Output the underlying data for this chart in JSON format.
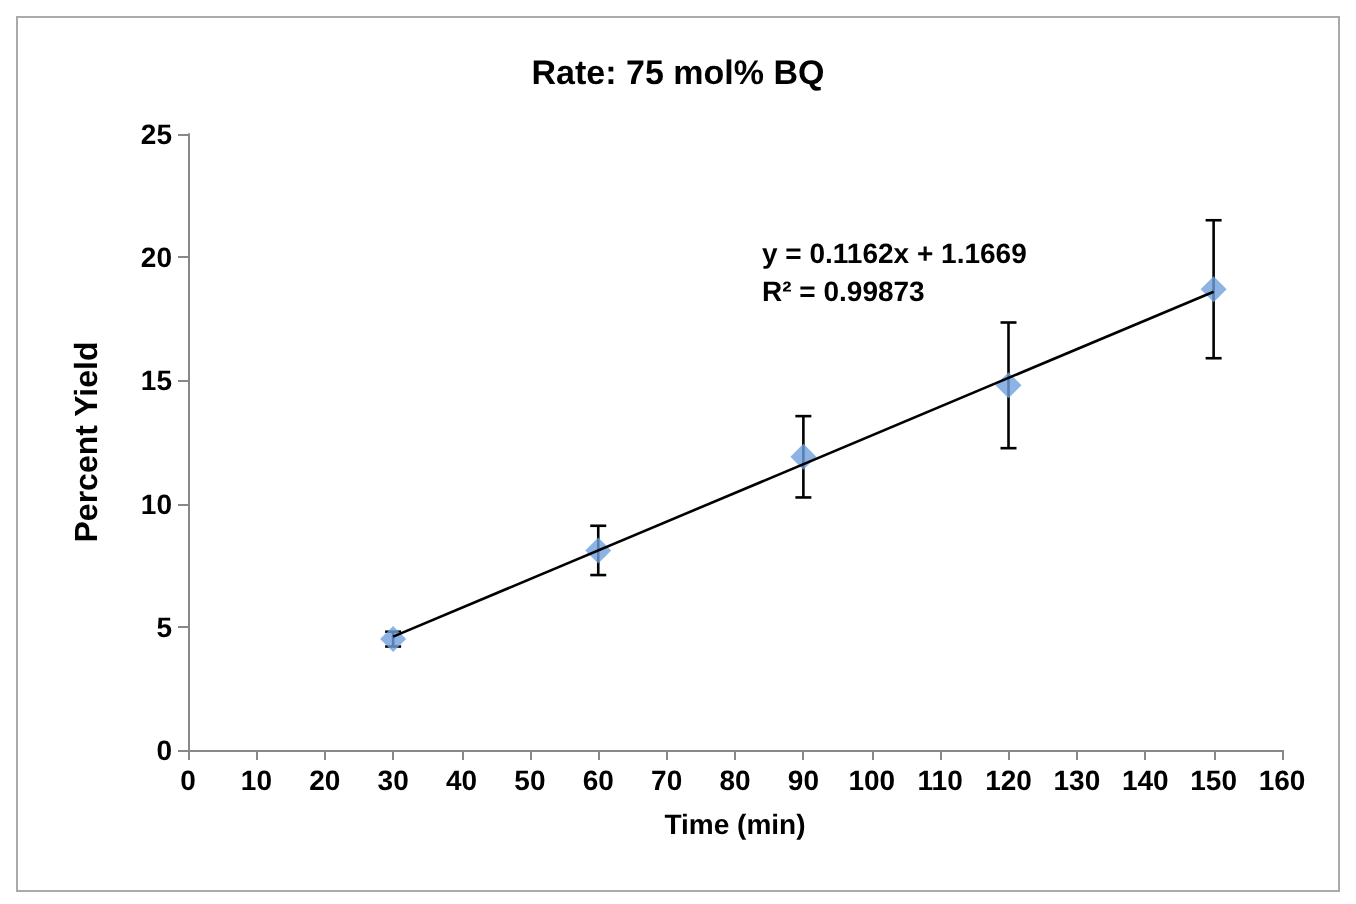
{
  "chart_data": {
    "type": "scatter",
    "title": "Rate: 75 mol% BQ",
    "xlabel": "Time (min)",
    "ylabel": "Percent Yield",
    "x": [
      30,
      60,
      90,
      120,
      150
    ],
    "series": [
      {
        "color": "#6fa0dc",
        "values": [
          4.5,
          8.1,
          11.9,
          14.8,
          18.7
        ],
        "errors": [
          0.3,
          1.0,
          1.65,
          2.55,
          2.8
        ],
        "marker": "diamond"
      },
      {
        "type": "line",
        "color": "#000000",
        "x": [
          30,
          150
        ],
        "values": [
          4.6,
          18.6
        ],
        "line_style": "solid",
        "marker": "none"
      }
    ],
    "annotations": [
      "y = 0.1162x + 1.1669\nR² = 0.99873"
    ],
    "xlim": [
      0,
      160
    ],
    "xticks": [
      0,
      10,
      20,
      30,
      40,
      50,
      60,
      70,
      80,
      90,
      100,
      110,
      120,
      130,
      140,
      150,
      160
    ],
    "ylim": [
      0,
      25
    ],
    "yticks": [
      0,
      5,
      10,
      15,
      20,
      25
    ],
    "grid": false
  }
}
